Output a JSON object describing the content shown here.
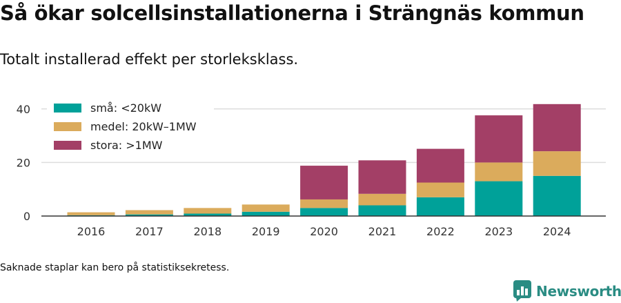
{
  "title": "Så ökar solcellsinstallationerna i Strängnäs kommun",
  "subtitle": "Totalt installerad effekt per storleksklass.",
  "footnote": "Saknade staplar kan bero på statistiksekretess.",
  "brand": {
    "name": "Newsworthy",
    "icon": "newsworthy-logo-icon",
    "color": "#2a8c83"
  },
  "chart_data": {
    "type": "bar",
    "stacked": true,
    "categories": [
      "2016",
      "2017",
      "2018",
      "2019",
      "2020",
      "2021",
      "2022",
      "2023",
      "2024"
    ],
    "series": [
      {
        "name": "små: <20kW",
        "color": "#00a199",
        "values": [
          0.3,
          0.6,
          0.9,
          1.6,
          3.0,
          4.0,
          7.0,
          13.0,
          15.0
        ]
      },
      {
        "name": "medel: 20kW–1MW",
        "color": "#dbab5c",
        "values": [
          1.1,
          1.6,
          2.1,
          2.7,
          3.2,
          4.3,
          5.5,
          7.0,
          9.2
        ]
      },
      {
        "name": "stora: >1MW",
        "color": "#a33f66",
        "values": [
          0,
          0,
          0,
          0,
          12.6,
          12.5,
          12.6,
          17.6,
          17.6
        ]
      }
    ],
    "yticks": [
      0,
      20,
      40
    ],
    "ylim": [
      0,
      40.5
    ],
    "grid": true,
    "legend_position": "top-left"
  }
}
